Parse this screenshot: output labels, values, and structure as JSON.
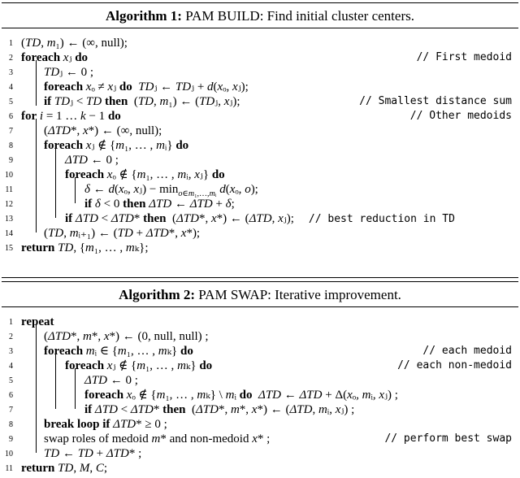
{
  "algorithm1": {
    "label": "Algorithm 1:",
    "title": "PAM BUILD: Find initial cluster centers.",
    "lines": [
      {
        "num": "1",
        "code": "(TD, m₁) ← (∞, null);",
        "comment": ""
      },
      {
        "num": "2",
        "code": "foreach xⱼ do",
        "comment": "// First medoid"
      },
      {
        "num": "3",
        "code": "TDⱼ ← 0 ;",
        "comment": ""
      },
      {
        "num": "4",
        "code": "foreach xₒ ≠ xⱼ do  TDⱼ ← TDⱼ + d(xₒ, xⱼ);",
        "comment": ""
      },
      {
        "num": "5",
        "code": "if TDⱼ < TD then  (TD, m₁) ← (TDⱼ, xⱼ);",
        "comment": "// Smallest distance sum"
      },
      {
        "num": "6",
        "code": "for i = 1 … k − 1 do",
        "comment": "// Other medoids"
      },
      {
        "num": "7",
        "code": "(ΔTD*, x*) ← (∞, null);",
        "comment": ""
      },
      {
        "num": "8",
        "code": "foreach xⱼ ∉ {m₁, … , mᵢ} do",
        "comment": ""
      },
      {
        "num": "9",
        "code": "ΔTD ← 0 ;",
        "comment": ""
      },
      {
        "num": "10",
        "code": "foreach xₒ ∉ {m₁, … , mᵢ, xⱼ} do",
        "comment": ""
      },
      {
        "num": "11",
        "code": "δ ← d(xₒ, xⱼ) − min_{o∈m₁,…,mᵢ} d(xₒ, o);",
        "comment": ""
      },
      {
        "num": "12",
        "code": "if δ < 0 then ΔTD ← ΔTD + δ;",
        "comment": ""
      },
      {
        "num": "13",
        "code": "if ΔTD < ΔTD* then  (ΔTD*, x*) ← (ΔTD, xⱼ);",
        "comment": "// best reduction in TD"
      },
      {
        "num": "14",
        "code": "(TD, mᵢ₊₁) ← (TD + ΔTD*, x*);",
        "comment": ""
      },
      {
        "num": "15",
        "code": "return TD, {m₁, … , mₖ};",
        "comment": ""
      }
    ]
  },
  "algorithm2": {
    "label": "Algorithm 2:",
    "title": "PAM SWAP: Iterative improvement.",
    "lines": [
      {
        "num": "1",
        "code": "repeat",
        "comment": ""
      },
      {
        "num": "2",
        "code": "(ΔTD*, m*, x*) ← (0, null, null) ;",
        "comment": ""
      },
      {
        "num": "3",
        "code": "foreach mᵢ ∈ {m₁, … , mₖ} do",
        "comment": "// each medoid"
      },
      {
        "num": "4",
        "code": "foreach xⱼ ∉ {m₁, … , mₖ} do",
        "comment": "// each non-medoid"
      },
      {
        "num": "5",
        "code": "ΔTD ← 0 ;",
        "comment": ""
      },
      {
        "num": "6",
        "code": "foreach xₒ ∉ {m₁, … , mₖ} \\ mᵢ do  ΔTD ← ΔTD + Δ(xₒ, mᵢ, xⱼ) ;",
        "comment": ""
      },
      {
        "num": "7",
        "code": "if ΔTD < ΔTD* then  (ΔTD*, m*, x*) ← (ΔTD, mᵢ, xⱼ) ;",
        "comment": ""
      },
      {
        "num": "8",
        "code": "break loop if ΔTD* ≥ 0 ;",
        "comment": ""
      },
      {
        "num": "9",
        "code": "swap roles of medoid m* and non-medoid x* ;",
        "comment": "// perform best swap"
      },
      {
        "num": "10",
        "code": "TD ← TD + ΔTD* ;",
        "comment": ""
      },
      {
        "num": "11",
        "code": "return TD, M, C;",
        "comment": ""
      }
    ]
  }
}
